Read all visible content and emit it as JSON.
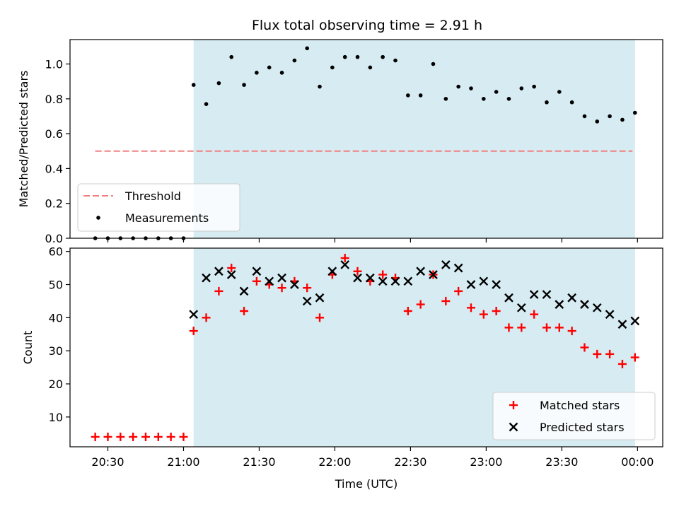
{
  "title": "Flux total observing time = 2.91 h",
  "colors": {
    "shade": "#add8e6",
    "threshold": "#f08080",
    "matched": "#ff0000",
    "predicted": "#000000",
    "measurement": "#000000"
  },
  "chart_data": [
    {
      "type": "scatter",
      "ylabel": "Matched/Predicted stars",
      "xlim": [
        "20:15",
        "00:10"
      ],
      "ylim": [
        0,
        1.14
      ],
      "yticks": [
        "0.0",
        "0.2",
        "0.4",
        "0.6",
        "0.8",
        "1.0"
      ],
      "shaded_span": [
        "21:04",
        "23:59"
      ],
      "threshold": {
        "name": "Threshold",
        "value": 0.5,
        "x": [
          "20:25",
          "23:58"
        ]
      },
      "legend": {
        "placement": "lower-left",
        "entries": [
          "Threshold",
          "Measurements"
        ]
      },
      "series": [
        {
          "name": "Measurements",
          "x": [
            "20:25",
            "20:30",
            "20:35",
            "20:40",
            "20:45",
            "20:50",
            "20:55",
            "21:00",
            "21:04",
            "21:09",
            "21:14",
            "21:19",
            "21:24",
            "21:29",
            "21:34",
            "21:39",
            "21:44",
            "21:49",
            "21:54",
            "21:59",
            "22:04",
            "22:09",
            "22:14",
            "22:19",
            "22:24",
            "22:29",
            "22:34",
            "22:39",
            "22:44",
            "22:49",
            "22:54",
            "22:59",
            "23:04",
            "23:09",
            "23:14",
            "23:19",
            "23:24",
            "23:29",
            "23:34",
            "23:39",
            "23:44",
            "23:49",
            "23:54",
            "23:59"
          ],
          "values": [
            0,
            0,
            0,
            0,
            0,
            0,
            0,
            0,
            0.88,
            0.77,
            0.89,
            1.04,
            0.88,
            0.95,
            0.98,
            0.95,
            1.02,
            1.09,
            0.87,
            0.98,
            1.04,
            1.04,
            0.98,
            1.04,
            1.02,
            0.82,
            0.82,
            1.0,
            0.8,
            0.87,
            0.86,
            0.8,
            0.84,
            0.8,
            0.86,
            0.87,
            0.78,
            0.84,
            0.78,
            0.7,
            0.67,
            0.7,
            0.68,
            0.72
          ]
        }
      ]
    },
    {
      "type": "scatter",
      "xlabel": "Time (UTC)",
      "ylabel": "Count",
      "xlim": [
        "20:15",
        "00:10"
      ],
      "ylim": [
        1,
        61
      ],
      "yticks": [
        "10",
        "20",
        "30",
        "40",
        "50",
        "60"
      ],
      "xticks": [
        "20:30",
        "21:00",
        "21:30",
        "22:00",
        "22:30",
        "23:00",
        "23:30",
        "00:00"
      ],
      "shaded_span": [
        "21:04",
        "23:59"
      ],
      "legend": {
        "placement": "lower-right",
        "entries": [
          "Matched stars",
          "Predicted stars"
        ]
      },
      "series": [
        {
          "name": "Matched stars",
          "marker": "+",
          "x": [
            "20:25",
            "20:30",
            "20:35",
            "20:40",
            "20:45",
            "20:50",
            "20:55",
            "21:00",
            "21:04",
            "21:09",
            "21:14",
            "21:19",
            "21:24",
            "21:29",
            "21:34",
            "21:39",
            "21:44",
            "21:49",
            "21:54",
            "21:59",
            "22:04",
            "22:09",
            "22:14",
            "22:19",
            "22:24",
            "22:29",
            "22:34",
            "22:39",
            "22:44",
            "22:49",
            "22:54",
            "22:59",
            "23:04",
            "23:09",
            "23:14",
            "23:19",
            "23:24",
            "23:29",
            "23:34",
            "23:39",
            "23:44",
            "23:49",
            "23:54",
            "23:59"
          ],
          "values": [
            4,
            4,
            4,
            4,
            4,
            4,
            4,
            4,
            36,
            40,
            48,
            55,
            42,
            51,
            50,
            49,
            51,
            49,
            40,
            53,
            58,
            54,
            51,
            53,
            52,
            42,
            44,
            53,
            45,
            48,
            43,
            41,
            42,
            37,
            37,
            41,
            37,
            37,
            36,
            31,
            29,
            29,
            26,
            28
          ]
        },
        {
          "name": "Predicted stars",
          "marker": "x",
          "x": [
            "21:04",
            "21:09",
            "21:14",
            "21:19",
            "21:24",
            "21:29",
            "21:34",
            "21:39",
            "21:44",
            "21:49",
            "21:54",
            "21:59",
            "22:04",
            "22:09",
            "22:14",
            "22:19",
            "22:24",
            "22:29",
            "22:34",
            "22:39",
            "22:44",
            "22:49",
            "22:54",
            "22:59",
            "23:04",
            "23:09",
            "23:14",
            "23:19",
            "23:24",
            "23:29",
            "23:34",
            "23:39",
            "23:44",
            "23:49",
            "23:54",
            "23:59"
          ],
          "values": [
            41,
            52,
            54,
            53,
            48,
            54,
            51,
            52,
            50,
            45,
            46,
            54,
            56,
            52,
            52,
            51,
            51,
            51,
            54,
            53,
            56,
            55,
            50,
            51,
            50,
            46,
            43,
            47,
            47,
            44,
            46,
            44,
            43,
            41,
            38,
            39
          ]
        }
      ]
    }
  ]
}
